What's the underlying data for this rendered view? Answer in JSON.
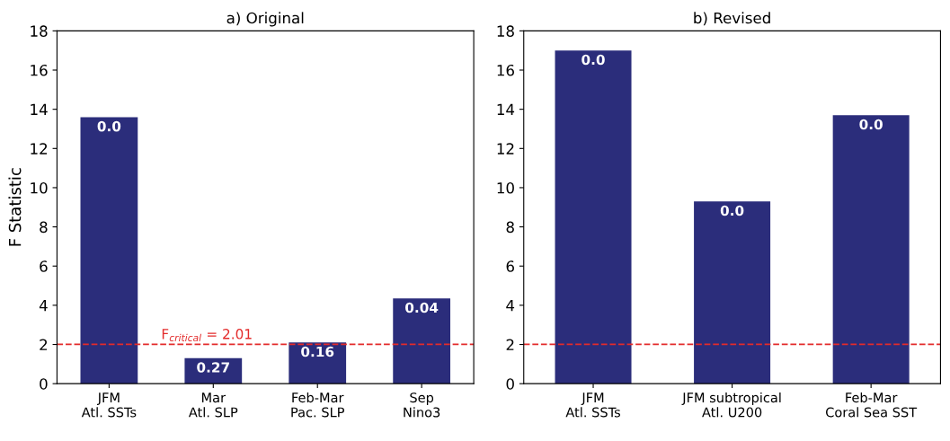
{
  "chart_data": [
    {
      "type": "bar",
      "title": "a) Original",
      "ylabel": "F Statistic",
      "categories": [
        "JFM\nAtl. SSTs",
        "Mar\nAtl. SLP",
        "Feb-Mar\nPac. SLP",
        "Sep\nNino3"
      ],
      "values": [
        13.6,
        1.3,
        2.1,
        4.35
      ],
      "color": "#2b2d7b",
      "annotations": [
        {
          "text": "0.0",
          "x": "JFM\nAtl. SSTs",
          "y": 13.6
        },
        {
          "text": "0.27",
          "x": "Mar\nAtl. SLP",
          "y": 1.3
        },
        {
          "text": "0.16",
          "x": "Feb-Mar\nPac. SLP",
          "y": 2.1
        },
        {
          "text": "0.04",
          "x": "Sep\nNino3",
          "y": 4.35
        }
      ],
      "ylim": [
        0,
        18
      ],
      "yticks": [
        0,
        2,
        4,
        6,
        8,
        10,
        12,
        14,
        16,
        18
      ],
      "grid": false,
      "ref_lines": [
        {
          "axis": "y",
          "value": 2.01,
          "label": "F$_{critical}$ = 2.01",
          "color": "#e32b2b",
          "line_style": "dashed"
        }
      ]
    },
    {
      "type": "bar",
      "title": "b) Revised",
      "categories": [
        "JFM\nAtl. SSTs",
        "JFM subtropical\nAtl. U200",
        "Feb-Mar\nCoral Sea SST"
      ],
      "values": [
        17.0,
        9.3,
        13.7
      ],
      "color": "#2b2d7b",
      "annotations": [
        {
          "text": "0.0",
          "x": "JFM\nAtl. SSTs",
          "y": 17.0
        },
        {
          "text": "0.0",
          "x": "JFM subtropical\nAtl. U200",
          "y": 9.3
        },
        {
          "text": "0.0",
          "x": "Feb-Mar\nCoral Sea SST",
          "y": 13.7
        }
      ],
      "ylim": [
        0,
        18
      ],
      "yticks": [
        0,
        2,
        4,
        6,
        8,
        10,
        12,
        14,
        16,
        18
      ],
      "grid": false,
      "ref_lines": [
        {
          "axis": "y",
          "value": 2.01,
          "color": "#e32b2b",
          "line_style": "dashed"
        }
      ]
    }
  ]
}
